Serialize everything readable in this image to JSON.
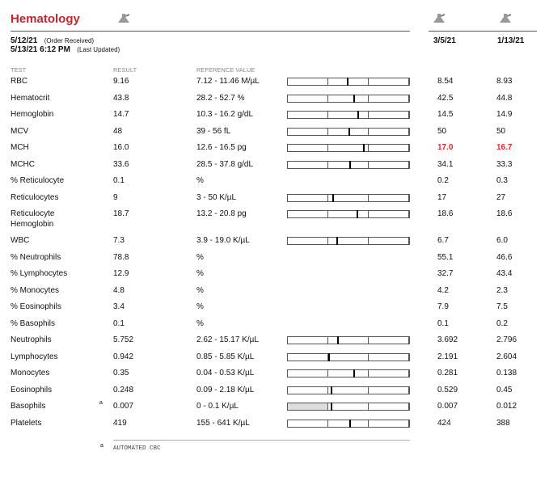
{
  "header": {
    "title": "Hematology",
    "order_date": "5/12/21",
    "order_note": "(Order Received)",
    "updated_date": "5/13/21 6:12 PM",
    "updated_note": "(Last Updated)",
    "previous_dates": [
      "3/5/21",
      "1/13/21"
    ]
  },
  "table": {
    "columns": [
      "TEST",
      "RESULT",
      "REFERENCE VALUE"
    ],
    "rows": [
      {
        "test": "RBC",
        "result": "9.16",
        "reference": "7.12 - 11.46 M/µL",
        "previous": [
          "8.54",
          "8.93"
        ]
      },
      {
        "test": "Hematocrit",
        "result": "43.8",
        "reference": "28.2 - 52.7 %",
        "previous": [
          "42.5",
          "44.8"
        ]
      },
      {
        "test": "Hemoglobin",
        "result": "14.7",
        "reference": "10.3 - 16.2 g/dL",
        "previous": [
          "14.5",
          "14.9"
        ]
      },
      {
        "test": "MCV",
        "result": "48",
        "reference": "39 - 56 fL",
        "previous": [
          "50",
          "50"
        ]
      },
      {
        "test": "MCH",
        "result": "16.0",
        "reference": "12.6 - 16.5 pg",
        "previous": [
          "17.0",
          "16.7"
        ],
        "previous_color": "#e3262c"
      },
      {
        "test": "MCHC",
        "result": "33.6",
        "reference": "28.5 - 37.8 g/dL",
        "previous": [
          "34.1",
          "33.3"
        ]
      },
      {
        "test": "% Reticulocyte",
        "result": "0.1",
        "reference": "%",
        "previous": [
          "0.2",
          "0.3"
        ]
      },
      {
        "test": "Reticulocytes",
        "result": "9",
        "reference": "3 - 50 K/µL",
        "previous": [
          "17",
          "27"
        ]
      },
      {
        "test": "Reticulocyte Hemoglobin",
        "result": "18.7",
        "reference": "13.2 - 20.8 pg",
        "previous": [
          "18.6",
          "18.6"
        ]
      },
      {
        "test": "WBC",
        "result": "7.3",
        "reference": "3.9 - 19.0 K/µL",
        "previous": [
          "6.7",
          "6.0"
        ]
      },
      {
        "test": "% Neutrophils",
        "result": "78.8",
        "reference": "%",
        "previous": [
          "55.1",
          "46.6"
        ]
      },
      {
        "test": "% Lymphocytes",
        "result": "12.9",
        "reference": "%",
        "previous": [
          "32.7",
          "43.4"
        ]
      },
      {
        "test": "% Monocytes",
        "result": "4.8",
        "reference": "%",
        "previous": [
          "4.2",
          "2.3"
        ]
      },
      {
        "test": "% Eosinophils",
        "result": "3.4",
        "reference": "%",
        "previous": [
          "7.9",
          "7.5"
        ]
      },
      {
        "test": "% Basophils",
        "result": "0.1",
        "reference": "%",
        "previous": [
          "0.1",
          "0.2"
        ]
      },
      {
        "test": "Neutrophils",
        "result": "5.752",
        "reference": "2.62 - 15.17 K/µL",
        "previous": [
          "3.692",
          "2.796"
        ]
      },
      {
        "test": "Lymphocytes",
        "result": "0.942",
        "reference": "0.85 - 5.85 K/µL",
        "previous": [
          "2.191",
          "2.604"
        ]
      },
      {
        "test": "Monocytes",
        "result": "0.35",
        "reference": "0.04 - 0.53 K/µL",
        "previous": [
          "0.281",
          "0.138"
        ]
      },
      {
        "test": "Eosinophils",
        "result": "0.248",
        "reference": "0.09 - 2.18 K/µL",
        "previous": [
          "0.529",
          "0.45"
        ]
      },
      {
        "test": "Basophils",
        "footnote": "a",
        "result": "0.007",
        "reference": "0 - 0.1 K/µL",
        "previous": [
          "0.007",
          "0.012"
        ]
      },
      {
        "test": "Platelets",
        "result": "419",
        "reference": "155 - 641 K/µL",
        "previous": [
          "424",
          "388"
        ]
      }
    ]
  },
  "footnote": {
    "marker": "a",
    "text": "AUTOMATED CBC"
  }
}
